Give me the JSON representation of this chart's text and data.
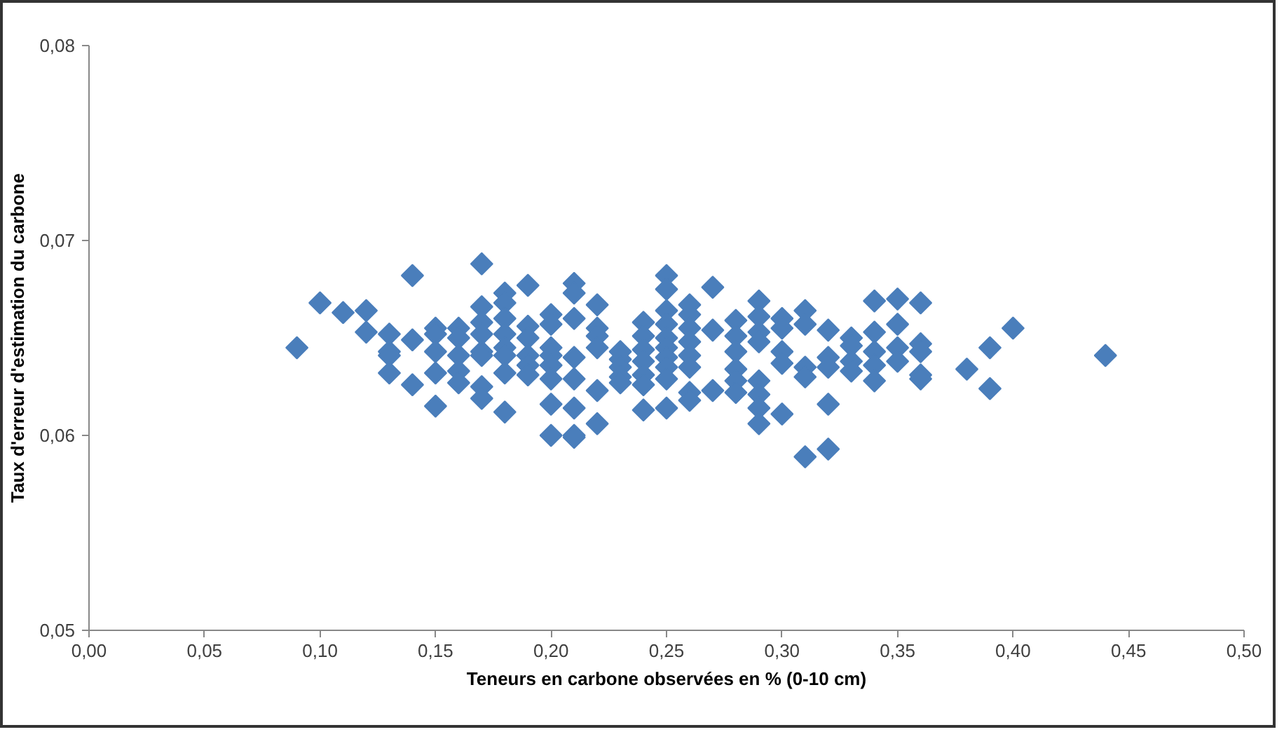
{
  "chart_data": {
    "type": "scatter",
    "xlabel": "Teneurs en carbone observées en % (0-10 cm)",
    "ylabel": "Taux d'erreur d'estimation du carbone",
    "marker": "diamond",
    "grid": false,
    "xlim": [
      0,
      0.5
    ],
    "ylim": [
      0.05,
      0.08
    ],
    "xticks": [
      {
        "value": 0,
        "label": "0,00"
      },
      {
        "value": 0.05,
        "label": "0,05"
      },
      {
        "value": 0.1,
        "label": "0,10"
      },
      {
        "value": 0.15,
        "label": "0,15"
      },
      {
        "value": 0.2,
        "label": "0,20"
      },
      {
        "value": 0.25,
        "label": "0,25"
      },
      {
        "value": 0.3,
        "label": "0,30"
      },
      {
        "value": 0.35,
        "label": "0,35"
      },
      {
        "value": 0.4,
        "label": "0,40"
      },
      {
        "value": 0.45,
        "label": "0,45"
      },
      {
        "value": 0.5,
        "label": "0,50"
      }
    ],
    "yticks": [
      {
        "value": 0.05,
        "label": "0,05"
      },
      {
        "value": 0.06,
        "label": "0,06"
      },
      {
        "value": 0.07,
        "label": "0,07"
      },
      {
        "value": 0.08,
        "label": "0,08"
      }
    ],
    "series": [
      {
        "color": "#4a7ebb",
        "x": [
          0.09,
          0.1,
          0.11,
          0.12,
          0.12,
          0.13,
          0.13,
          0.13,
          0.13,
          0.14,
          0.14,
          0.14,
          0.15,
          0.15,
          0.15,
          0.15,
          0.15,
          0.16,
          0.16,
          0.16,
          0.16,
          0.16,
          0.17,
          0.17,
          0.17,
          0.17,
          0.17,
          0.17,
          0.17,
          0.17,
          0.18,
          0.18,
          0.18,
          0.18,
          0.18,
          0.18,
          0.18,
          0.18,
          0.19,
          0.19,
          0.19,
          0.19,
          0.19,
          0.19,
          0.2,
          0.2,
          0.2,
          0.2,
          0.2,
          0.2,
          0.2,
          0.2,
          0.21,
          0.21,
          0.21,
          0.21,
          0.21,
          0.21,
          0.21,
          0.21,
          0.22,
          0.22,
          0.22,
          0.22,
          0.22,
          0.22,
          0.23,
          0.23,
          0.23,
          0.23,
          0.23,
          0.24,
          0.24,
          0.24,
          0.24,
          0.24,
          0.24,
          0.24,
          0.25,
          0.25,
          0.25,
          0.25,
          0.25,
          0.25,
          0.25,
          0.25,
          0.25,
          0.25,
          0.26,
          0.26,
          0.26,
          0.26,
          0.26,
          0.26,
          0.26,
          0.26,
          0.27,
          0.27,
          0.27,
          0.28,
          0.28,
          0.28,
          0.28,
          0.28,
          0.28,
          0.29,
          0.29,
          0.29,
          0.29,
          0.29,
          0.29,
          0.29,
          0.29,
          0.3,
          0.3,
          0.3,
          0.3,
          0.3,
          0.31,
          0.31,
          0.31,
          0.31,
          0.31,
          0.32,
          0.32,
          0.32,
          0.32,
          0.32,
          0.33,
          0.33,
          0.33,
          0.33,
          0.34,
          0.34,
          0.34,
          0.34,
          0.34,
          0.35,
          0.35,
          0.35,
          0.35,
          0.36,
          0.36,
          0.36,
          0.36,
          0.36,
          0.38,
          0.39,
          0.39,
          0.4,
          0.44
        ],
        "values": [
          0.0645,
          0.0668,
          0.0663,
          0.0664,
          0.0653,
          0.0652,
          0.0643,
          0.0641,
          0.0632,
          0.0682,
          0.0649,
          0.0626,
          0.0655,
          0.0652,
          0.0643,
          0.0632,
          0.0615,
          0.0655,
          0.065,
          0.0641,
          0.0633,
          0.0627,
          0.0688,
          0.0666,
          0.0658,
          0.0652,
          0.0643,
          0.0641,
          0.0625,
          0.0619,
          0.0673,
          0.0668,
          0.066,
          0.0652,
          0.0645,
          0.0641,
          0.0632,
          0.0612,
          0.0677,
          0.0656,
          0.065,
          0.0641,
          0.0636,
          0.0631,
          0.0662,
          0.0657,
          0.0645,
          0.0641,
          0.0636,
          0.0629,
          0.0616,
          0.06,
          0.0678,
          0.0673,
          0.066,
          0.064,
          0.0629,
          0.0614,
          0.06,
          0.0599,
          0.0667,
          0.0655,
          0.0651,
          0.0645,
          0.0623,
          0.0606,
          0.0643,
          0.0639,
          0.0635,
          0.063,
          0.0627,
          0.0658,
          0.0651,
          0.0644,
          0.0638,
          0.0631,
          0.0626,
          0.0613,
          0.0682,
          0.0675,
          0.0664,
          0.0657,
          0.065,
          0.0645,
          0.064,
          0.0635,
          0.0629,
          0.0614,
          0.0667,
          0.0662,
          0.0655,
          0.0648,
          0.0641,
          0.0635,
          0.0622,
          0.0618,
          0.0676,
          0.0654,
          0.0623,
          0.0659,
          0.0651,
          0.0643,
          0.0634,
          0.0628,
          0.0622,
          0.0669,
          0.0661,
          0.0653,
          0.0648,
          0.0628,
          0.0621,
          0.0614,
          0.0606,
          0.066,
          0.0655,
          0.0643,
          0.0637,
          0.0611,
          0.0664,
          0.0657,
          0.0635,
          0.063,
          0.0589,
          0.0654,
          0.064,
          0.0635,
          0.0616,
          0.0593,
          0.065,
          0.0646,
          0.0638,
          0.0633,
          0.0669,
          0.0653,
          0.0643,
          0.0636,
          0.0628,
          0.067,
          0.0657,
          0.0645,
          0.0638,
          0.0668,
          0.0647,
          0.0643,
          0.0631,
          0.0629,
          0.0634,
          0.0645,
          0.0624,
          0.0655,
          0.0641
        ]
      }
    ]
  }
}
